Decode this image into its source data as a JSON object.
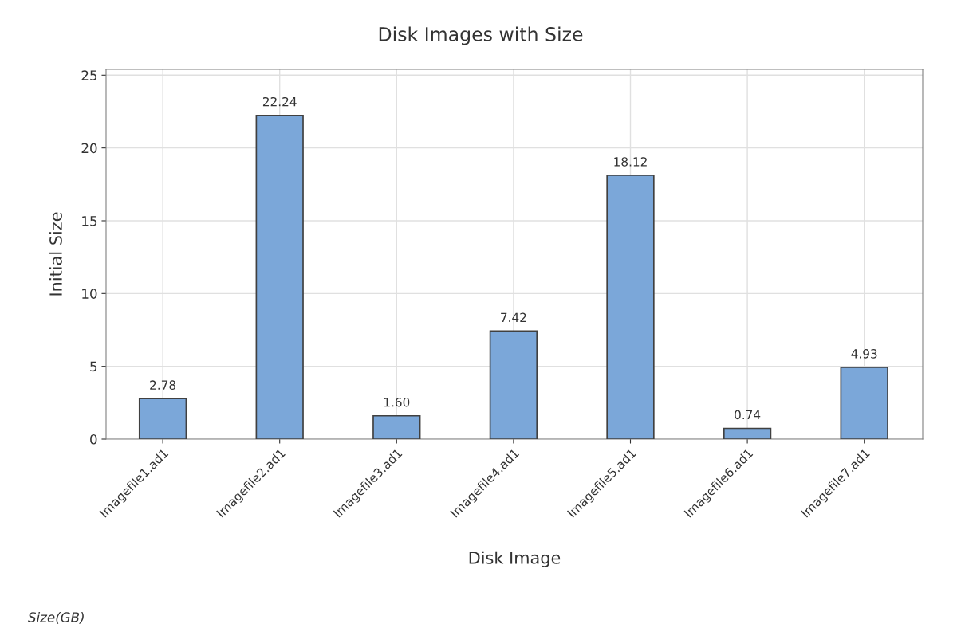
{
  "chart_data": {
    "type": "bar",
    "title": "Disk Images with Size",
    "xlabel": "Disk Image",
    "ylabel": "Initial Size",
    "categories": [
      "Imagefile1.ad1",
      "Imagefile2.ad1",
      "Imagefile3.ad1",
      "Imagefile4.ad1",
      "Imagefile5.ad1",
      "Imagefile6.ad1",
      "Imagefile7.ad1"
    ],
    "values": [
      2.78,
      22.24,
      1.6,
      7.42,
      18.12,
      0.74,
      4.93
    ],
    "value_labels": [
      "2.78",
      "22.24",
      "1.60",
      "7.42",
      "18.12",
      "0.74",
      "4.93"
    ],
    "color": "#7ba7d9",
    "ylim": [
      0,
      25.4
    ],
    "yticks": [
      0,
      5,
      10,
      15,
      20,
      25
    ],
    "grid": true,
    "legend": false,
    "annotations": [
      "Size(GB)"
    ]
  }
}
